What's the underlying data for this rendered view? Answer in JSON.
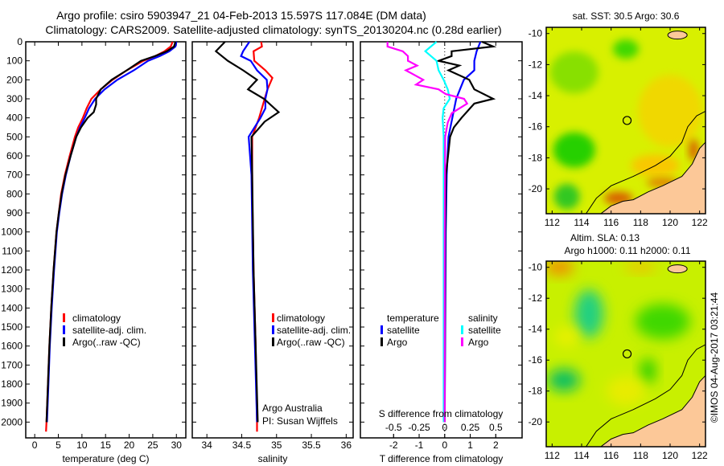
{
  "header": {
    "title_line1": "Argo profile: csiro 5903947_21 04-Feb-2013 15.597S 117.084E (DM data)",
    "title_line2": "Climatology: CARS2009. Satellite-adjusted climatology: synTS_20130204.nc (0.28d earlier)"
  },
  "colors": {
    "climatology": "#ff0000",
    "satellite": "#0000ff",
    "argo": "#000000",
    "sal_satellite": "#00ffff",
    "sal_argo": "#ff00ff",
    "land": "#fcc898"
  },
  "chart_data": [
    {
      "type": "line",
      "id": "temperature",
      "xlabel": "temperature (deg C)",
      "ylabel": "",
      "xlim": [
        -1.9,
        32
      ],
      "ylim": [
        2083,
        0
      ],
      "xticks": [
        0,
        5,
        10,
        15,
        20,
        25,
        30
      ],
      "yticks": [
        0,
        100,
        200,
        300,
        400,
        500,
        600,
        700,
        800,
        900,
        1000,
        1100,
        1200,
        1300,
        1400,
        1500,
        1600,
        1700,
        1800,
        1900,
        2000
      ],
      "legend": [
        "climatology",
        "satellite-adj. clim.",
        "Argo(..raw -QC)"
      ],
      "legend_position": "center",
      "series": [
        {
          "name": "climatology",
          "color": "#ff0000",
          "depth": [
            0,
            25,
            50,
            75,
            100,
            150,
            200,
            250,
            300,
            350,
            400,
            450,
            500,
            600,
            700,
            800,
            900,
            1000,
            1200,
            1400,
            1600,
            1800,
            2000,
            2050
          ],
          "values": [
            29.2,
            28.8,
            27.5,
            25.5,
            23,
            19.5,
            16.5,
            14,
            12,
            11,
            10.2,
            9.2,
            8.5,
            7.4,
            6.4,
            5.6,
            5.1,
            4.6,
            4.0,
            3.5,
            3.1,
            2.8,
            2.5,
            2.4
          ]
        },
        {
          "name": "satellite-adj. clim.",
          "color": "#0000ff",
          "depth": [
            0,
            25,
            50,
            75,
            100,
            150,
            200,
            250,
            300,
            350,
            400,
            450,
            500,
            600,
            700,
            800,
            900,
            1000,
            1200,
            1400,
            1600,
            1800,
            2000
          ],
          "values": [
            30,
            29.8,
            28.5,
            26.5,
            24,
            21,
            17.5,
            14.8,
            12.8,
            11.5,
            10.6,
            9.6,
            8.8,
            7.6,
            6.6,
            5.8,
            5.2,
            4.7,
            4.1,
            3.6,
            3.2,
            2.9,
            2.6
          ]
        },
        {
          "name": "Argo(..raw -QC)",
          "color": "#000000",
          "depth": [
            0,
            25,
            50,
            75,
            100,
            150,
            200,
            250,
            300,
            330,
            370,
            400,
            450,
            500,
            600,
            700,
            800,
            900,
            1000,
            1200,
            1400,
            1600,
            1800,
            2000
          ],
          "values": [
            29.8,
            29.5,
            28,
            25.5,
            22.5,
            19.5,
            16.3,
            14,
            13,
            13,
            12.5,
            11.2,
            9.8,
            8.8,
            7.6,
            6.5,
            5.7,
            5.1,
            4.6,
            4.0,
            3.5,
            3.1,
            2.8,
            2.5
          ]
        }
      ]
    },
    {
      "type": "line",
      "id": "salinity",
      "xlabel": "salinity",
      "xlim": [
        33.79,
        36.1
      ],
      "ylim": [
        2083,
        0
      ],
      "xticks": [
        34,
        34.5,
        35,
        35.5,
        36
      ],
      "legend": [
        "climatology",
        "satellite-adj. clim.",
        "Argo(..raw -QC)"
      ],
      "legend_position": "center-right",
      "annotation": [
        "Argo Australia",
        "PI: Susan Wijffels"
      ],
      "series": [
        {
          "name": "climatology",
          "color": "#ff0000",
          "depth": [
            0,
            25,
            50,
            100,
            150,
            190,
            250,
            300,
            400,
            500,
            800,
            1200,
            1600,
            2000,
            2050
          ],
          "values": [
            34.78,
            34.79,
            34.67,
            34.68,
            34.84,
            34.94,
            34.87,
            34.83,
            34.75,
            34.65,
            34.65,
            34.67,
            34.7,
            34.72,
            34.72
          ]
        },
        {
          "name": "satellite-adj. clim.",
          "color": "#0000ff",
          "depth": [
            0,
            50,
            75,
            100,
            150,
            200,
            250,
            300,
            350,
            400,
            500,
            700,
            1200,
            1600,
            2000
          ],
          "values": [
            34.61,
            34.52,
            34.49,
            34.63,
            34.72,
            34.86,
            34.87,
            34.84,
            34.84,
            34.77,
            34.6,
            34.64,
            34.66,
            34.69,
            34.72
          ]
        },
        {
          "name": "Argo(..raw -QC)",
          "color": "#000000",
          "depth": [
            0,
            50,
            100,
            150,
            200,
            250,
            300,
            370,
            420,
            500,
            700,
            1200,
            1600,
            2000
          ],
          "values": [
            34.26,
            34.13,
            34.3,
            34.52,
            34.72,
            34.59,
            34.82,
            35.03,
            34.83,
            34.64,
            34.65,
            34.67,
            34.7,
            34.73
          ]
        }
      ]
    },
    {
      "type": "line",
      "id": "difference",
      "xlabel": "T difference from climatology",
      "xlabel_secondary": "S difference from climatology",
      "xlim": [
        -3.3,
        3.03
      ],
      "xticks": [
        -2,
        -1,
        0,
        1,
        2
      ],
      "xticks_secondary": [
        "-0.5",
        "-0.25",
        "0",
        "0.25",
        "0.5"
      ],
      "secondary_scale_ratio": 0.25,
      "ylim": [
        2083,
        0
      ],
      "legend_groups": [
        {
          "title": "temperature",
          "items": [
            "satellite",
            "Argo"
          ]
        },
        {
          "title": "salinity",
          "items": [
            "satellite",
            "Argo"
          ]
        }
      ],
      "series": [
        {
          "name": "temperature satellite",
          "variable": "T",
          "color": "#0000ff",
          "depth": [
            0,
            50,
            100,
            150,
            200,
            250,
            300,
            400,
            500,
            700,
            1000,
            2000
          ],
          "values": [
            1.4,
            1.25,
            1.16,
            1.16,
            0.75,
            0.6,
            0.45,
            0.3,
            0.15,
            0.08,
            0.04,
            0
          ]
        },
        {
          "name": "temperature Argo",
          "variable": "T",
          "color": "#000000",
          "depth": [
            0,
            25,
            50,
            75,
            100,
            125,
            150,
            200,
            250,
            300,
            325,
            400,
            450,
            500,
            700,
            1000,
            2000
          ],
          "values": [
            1.46,
            1.9,
            0.27,
            0.27,
            -0.24,
            0.57,
            0.15,
            0.96,
            1.16,
            1.9,
            1.16,
            0.66,
            0.36,
            0.21,
            0.05,
            0.02,
            0
          ]
        },
        {
          "name": "salinity satellite",
          "variable": "S",
          "color": "#00ffff",
          "depth": [
            0,
            50,
            100,
            150,
            200,
            250,
            300,
            350,
            400,
            500,
            1000,
            2000
          ],
          "values": [
            -0.08,
            -0.19,
            -0.08,
            -0.06,
            -0.01,
            0.03,
            0.05,
            -0.01,
            -0.02,
            -0.01,
            -0.01,
            -0.01
          ]
        },
        {
          "name": "salinity Argo",
          "variable": "S",
          "color": "#ff00ff",
          "depth": [
            0,
            25,
            50,
            75,
            100,
            125,
            150,
            200,
            225,
            250,
            275,
            300,
            325,
            375,
            425,
            500,
            1000,
            2000
          ],
          "values": [
            -0.56,
            -0.56,
            -0.41,
            -0.36,
            -0.36,
            -0.27,
            -0.38,
            -0.21,
            -0.28,
            -0.06,
            0.01,
            0.19,
            0.22,
            0.07,
            0.03,
            0.005,
            0,
            0
          ]
        }
      ]
    }
  ],
  "maps": [
    {
      "id": "sst",
      "title": "sat. SST: 30.5 Argo: 30.6",
      "lon_ticks": [
        112,
        114,
        116,
        118,
        120,
        122
      ],
      "lat_ticks": [
        -10,
        -12,
        -14,
        -16,
        -18,
        -20
      ],
      "lon_range": [
        111.6,
        122.4
      ],
      "lat_range": [
        -21.6,
        -9.6
      ],
      "marker": {
        "lat": -15.597,
        "lon": 117.084
      }
    },
    {
      "id": "sla",
      "title": "Altim. SLA: 0.13",
      "subtitle": "Argo h1000: 0.11 h2000: 0.11",
      "lon_ticks": [
        112,
        114,
        116,
        118,
        120,
        122
      ],
      "lat_ticks": [
        -10,
        -12,
        -14,
        -16,
        -18,
        -20
      ],
      "lon_range": [
        111.6,
        122.4
      ],
      "lat_range": [
        -21.6,
        -9.6
      ],
      "marker": {
        "lat": -15.597,
        "lon": 117.084
      }
    }
  ],
  "footer": {
    "copyright": "©IMOS 04-Aug-2017 03:21:44"
  }
}
